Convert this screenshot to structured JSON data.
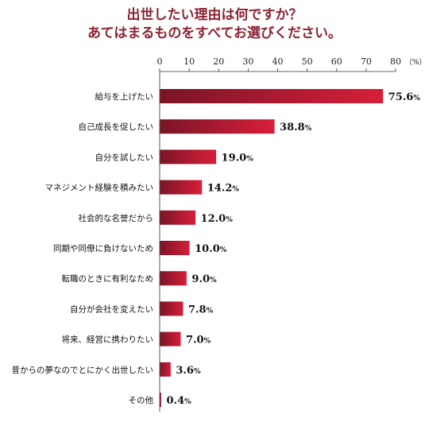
{
  "title_line1": "出世したい理由は何ですか？",
  "title_line2": "あてはまるものをすべてお選びください。",
  "colors": {
    "title": "#8c2333",
    "bar_dark": "#7a1526",
    "bar_light": "#d81e3a"
  },
  "chart_data": {
    "type": "bar",
    "orientation": "horizontal",
    "title": "出世したい理由は何ですか？ あてはまるものをすべてお選びください。",
    "unit": "（%）",
    "xlim": [
      0,
      80
    ],
    "xticks": [
      0,
      10,
      20,
      30,
      40,
      50,
      60,
      70,
      80
    ],
    "grid": false,
    "categories": [
      "給与を上げたい",
      "自己成長を促したい",
      "自分を試したい",
      "マネジメント経験を積みたい",
      "社会的な名誉だから",
      "同期や同僚に負けないため",
      "転職のときに有利なため",
      "自分が会社を変えたい",
      "将来、経営に携わりたい",
      "昔からの夢なのでとにかく出世したい",
      "その他"
    ],
    "values": [
      75.6,
      38.8,
      19.0,
      14.2,
      12.0,
      10.0,
      9.0,
      7.8,
      7.0,
      3.6,
      0.4
    ],
    "value_labels": [
      "75.6",
      "38.8",
      "19.0",
      "14.2",
      "12.0",
      "10.0",
      "9.0",
      "7.8",
      "7.0",
      "3.6",
      "0.4"
    ],
    "value_suffix": "%"
  }
}
